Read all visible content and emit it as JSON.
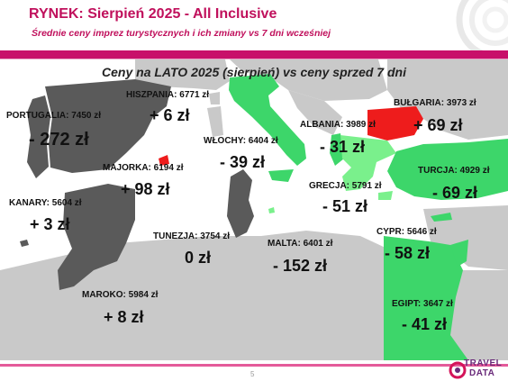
{
  "header": {
    "title": "RYNEK: Sierpień 2025 - All Inclusive",
    "subtitle": "Średnie ceny imprez turystycznych i ich zmiany vs 7 dni wcześniej"
  },
  "map": {
    "title": "Ceny na LATO 2025 (sierpień) vs ceny sprzed 7 dni",
    "colors": {
      "sea": "#ffffff",
      "land": "#c9c9c9",
      "decrease": "#3dd66a",
      "decrease_light": "#7af08c",
      "increase_strong": "#ee1c1c",
      "increase_grey": "#5a5a5a"
    },
    "destinations": [
      {
        "id": "portugalia",
        "label": "PORTUGALIA: 7450 zł",
        "change": "- 272 zł"
      },
      {
        "id": "hiszpania",
        "label": "HISZPANIA: 6771 zł",
        "change": "+ 6 zł"
      },
      {
        "id": "majorka",
        "label": "MAJORKA: 6194 zł",
        "change": "+ 98 zł"
      },
      {
        "id": "wlochy",
        "label": "WŁOCHY: 6404 zł",
        "change": "- 39 zł"
      },
      {
        "id": "albania",
        "label": "ALBANIA: 3989 zł",
        "change": "- 31 zł"
      },
      {
        "id": "bulgaria",
        "label": "BUŁGARIA: 3973 zł",
        "change": "+ 69 zł"
      },
      {
        "id": "turcja",
        "label": "TURCJA: 4929 zł",
        "change": "- 69 zł"
      },
      {
        "id": "grecja",
        "label": "GRECJA: 5791 zł",
        "change": "- 51 zł"
      },
      {
        "id": "kanary",
        "label": "KANARY: 5604 zł",
        "change": "+ 3 zł"
      },
      {
        "id": "tunezja",
        "label": "TUNEZJA: 3754 zł",
        "change": "0 zł"
      },
      {
        "id": "malta",
        "label": "MALTA: 6401 zł",
        "change": "- 152 zł"
      },
      {
        "id": "cypr",
        "label": "CYPR: 5646 zł",
        "change": "- 58 zł"
      },
      {
        "id": "maroko",
        "label": "MAROKO: 5984 zł",
        "change": "+ 8 zł"
      },
      {
        "id": "egipt",
        "label": "EGIPT: 3647 zł",
        "change": "- 41 zł"
      }
    ]
  },
  "footer": {
    "page_number": "5",
    "logo_line1": "TRAVEL",
    "logo_line2": "DATA"
  }
}
